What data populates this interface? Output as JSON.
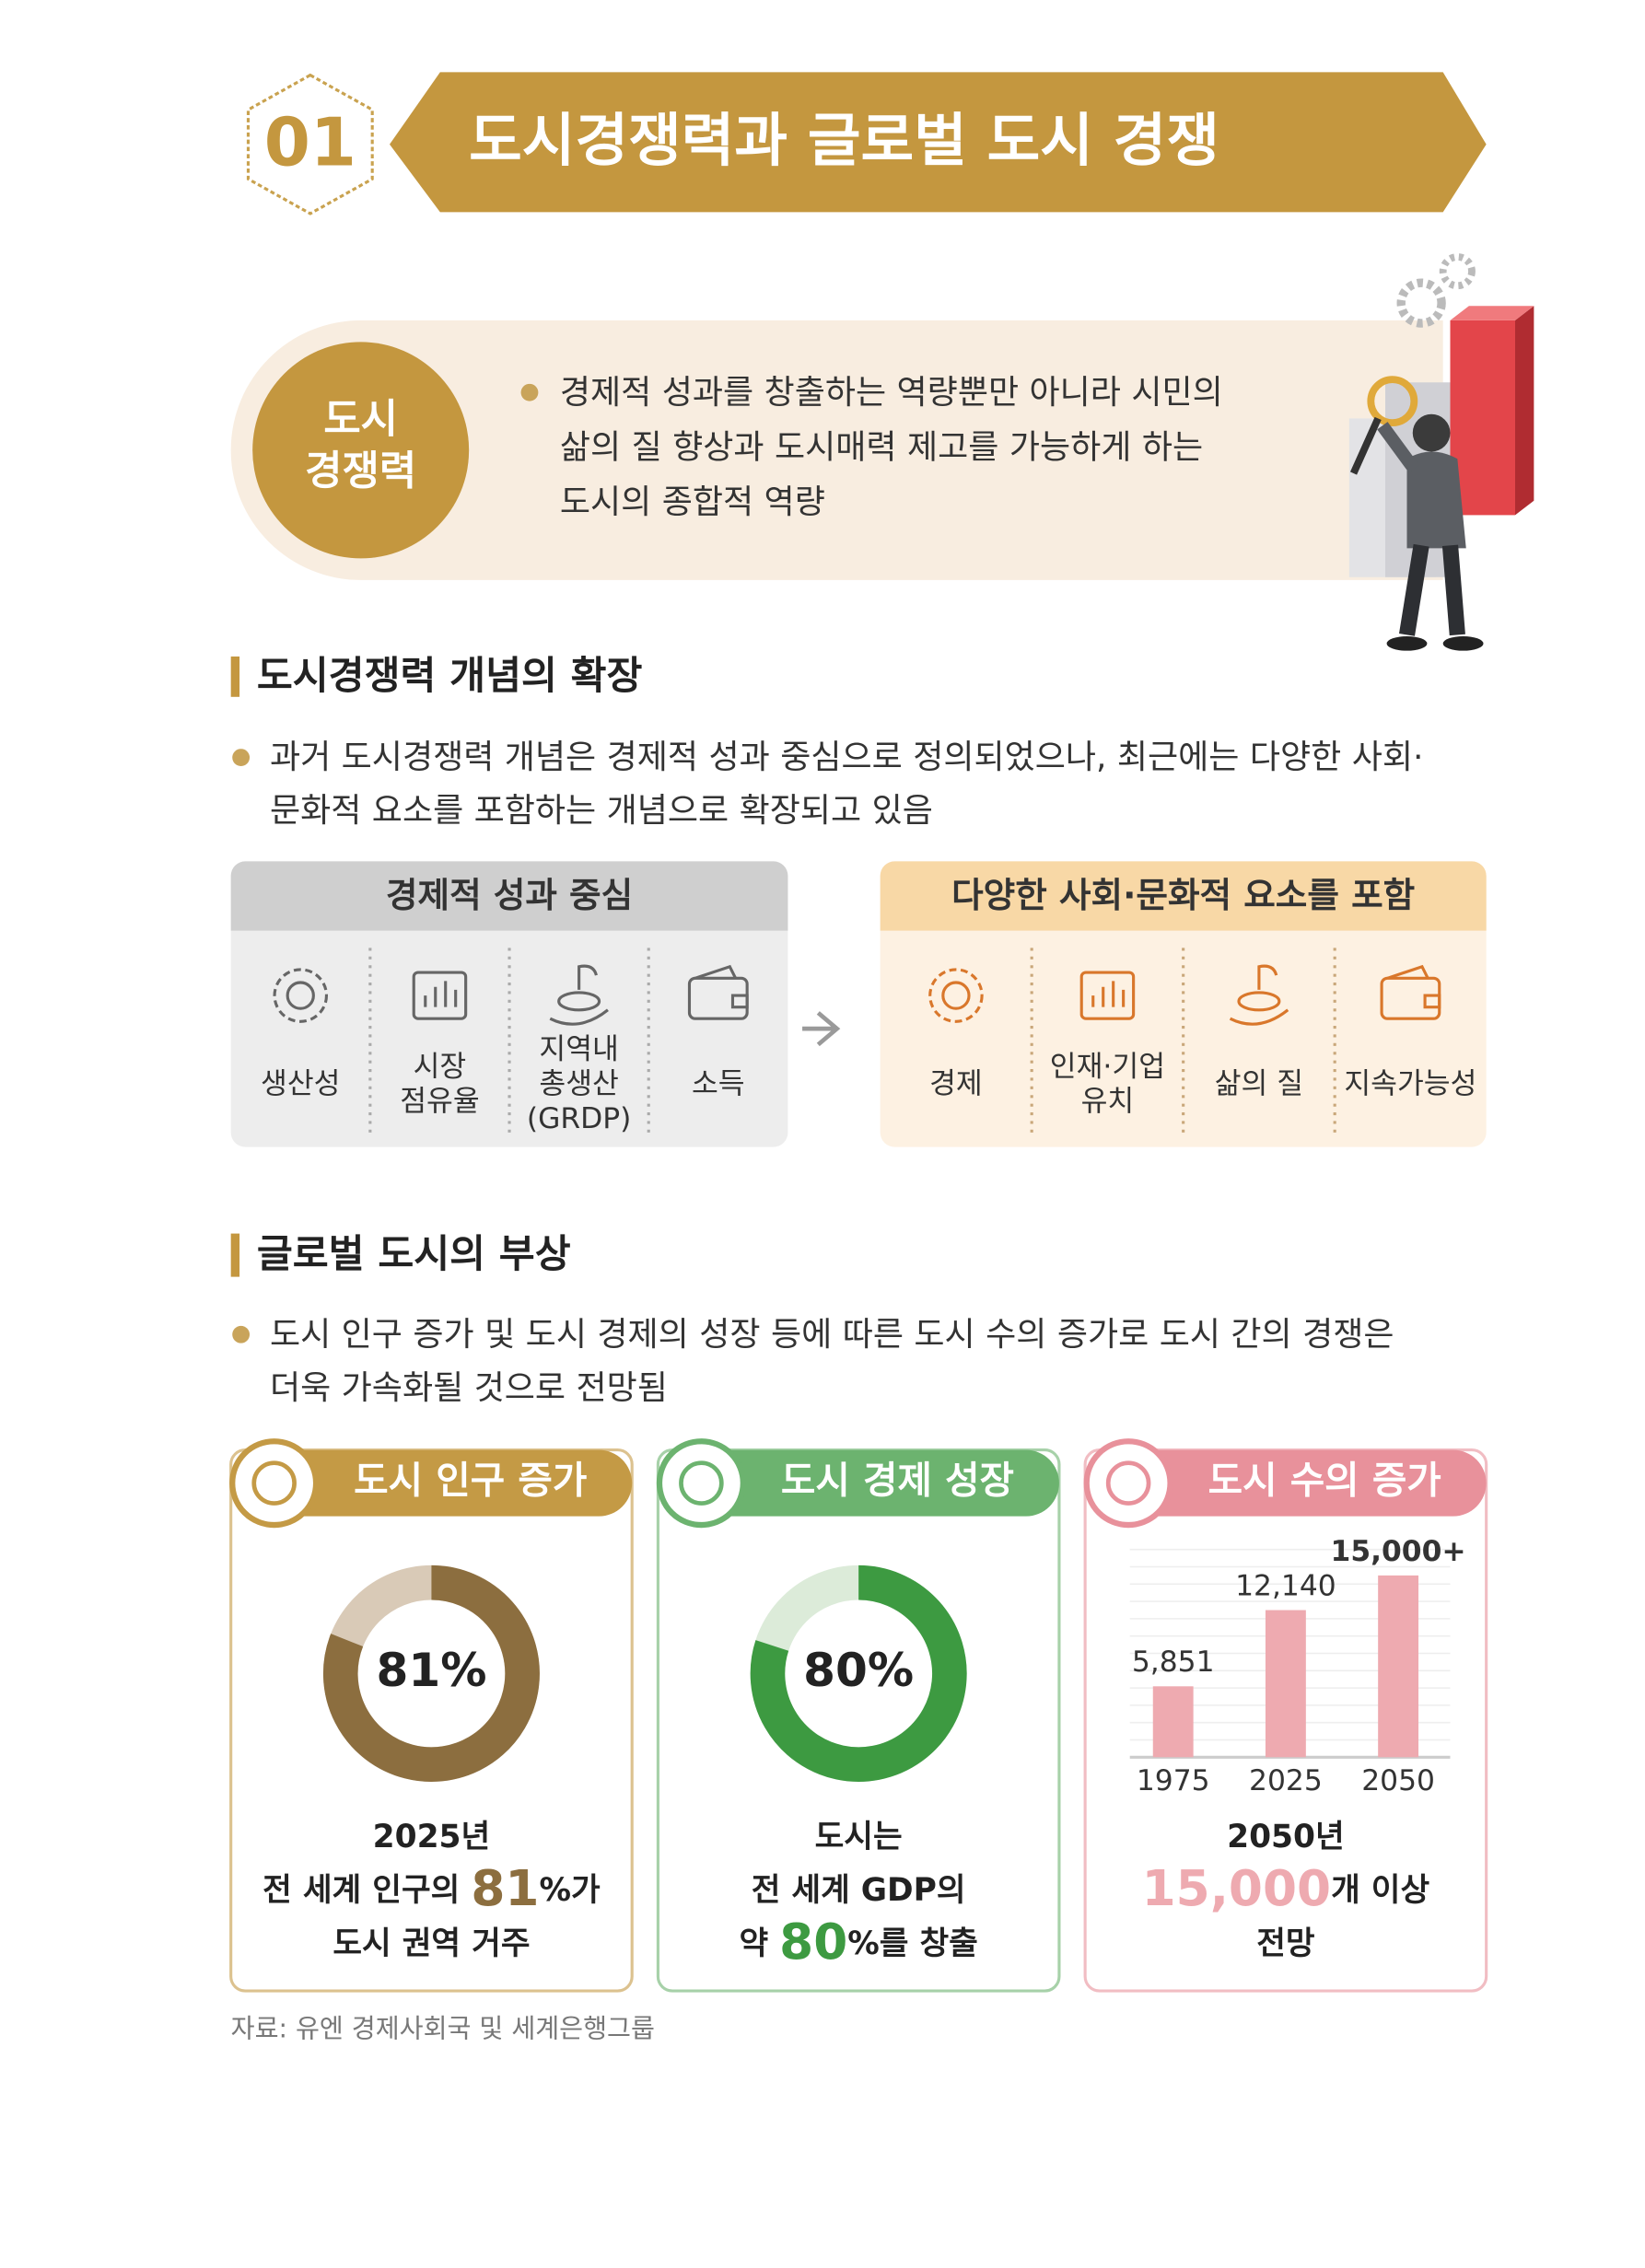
{
  "header": {
    "number": "01",
    "title": "도시경쟁력과 글로벌 도시 경쟁"
  },
  "definition": {
    "term": [
      "도시",
      "경쟁력"
    ],
    "lines": [
      "경제적 성과를 창출하는 역량뿐만 아니라 시민의",
      "삶의 질 향상과 도시매력 제고를 가능하게 하는",
      "도시의 종합적 역량"
    ]
  },
  "expansion": {
    "heading": "도시경쟁력 개념의 확장",
    "lines": [
      "과거 도시경쟁력 개념은 경제적 성과 중심으로 정의되었으나, 최근에는 다양한 사회·",
      "문화적 요소를 포함하는 개념으로 확장되고 있음"
    ],
    "before": {
      "title": "경제적 성과 중심",
      "items": [
        [
          "생산성"
        ],
        [
          "시장",
          "점유율"
        ],
        [
          "지역내",
          "총생산",
          "(GRDP)"
        ],
        [
          "소득"
        ]
      ]
    },
    "after": {
      "title": "다양한 사회·문화적 요소를 포함",
      "items": [
        [
          "경제"
        ],
        [
          "인재·기업",
          "유치"
        ],
        [
          "삶의 질"
        ],
        [
          "지속가능성"
        ]
      ]
    }
  },
  "rise": {
    "heading": "글로벌 도시의 부상",
    "lines": [
      "도시 인구 증가 및 도시 경제의 성장 등에 따른 도시 수의 증가로 도시 간의 경쟁은",
      "더욱 가속화될 것으로 전망됨"
    ],
    "cards": [
      {
        "title": "도시 인구 증가",
        "color": "#c49a45",
        "chart": {
          "type": "donut",
          "value": 81,
          "value_label": "81%",
          "color": "#8c6e3f",
          "track": "#d9cab7"
        },
        "caption": [
          [
            "2025년"
          ],
          [
            "전 세계 인구의 ",
            "81",
            "%가"
          ],
          [
            "도시 권역 거주"
          ]
        ]
      },
      {
        "title": "도시 경제 성장",
        "color": "#6cb36f",
        "chart": {
          "type": "donut",
          "value": 80,
          "value_label": "80%",
          "color": "#3d9a41",
          "track": "#dcebd9"
        },
        "caption": [
          [
            "도시는"
          ],
          [
            "전 세계 GDP의"
          ],
          [
            "약 ",
            "80",
            "%를 창출"
          ]
        ]
      },
      {
        "title": "도시 수의 증가",
        "color": "#e8919b",
        "chart": {
          "type": "bar",
          "categories": [
            "1975",
            "2025",
            "2050"
          ],
          "values": [
            5851,
            12140,
            15000
          ],
          "value_labels": [
            "5,851",
            "12,140",
            "15,000+"
          ],
          "color": "#eeaab0"
        },
        "caption": [
          [
            "2050년"
          ],
          [
            "15,000",
            "개 이상"
          ],
          [
            "전망"
          ]
        ]
      }
    ]
  },
  "source": "자료: 유엔 경제사회국 및 세계은행그룹"
}
